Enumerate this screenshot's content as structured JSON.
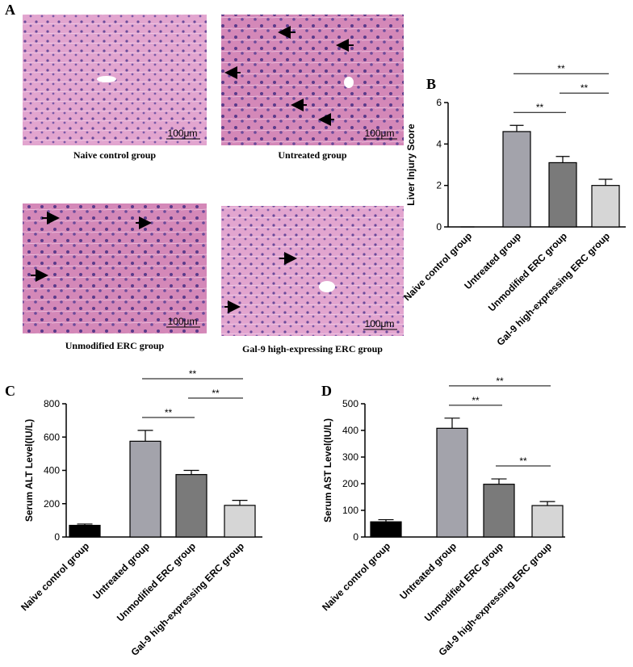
{
  "panel_a": {
    "label": "A",
    "images": [
      {
        "caption": "Naive control group",
        "scale_bar": "100μm"
      },
      {
        "caption": "Untreated group",
        "scale_bar": "100μm"
      },
      {
        "caption": "Unmodified ERC group",
        "scale_bar": "100μm"
      },
      {
        "caption": "Gal-9 high-expressing ERC group",
        "scale_bar": "100μm"
      }
    ]
  },
  "chart_data": [
    {
      "type": "bar",
      "panel_label": "B",
      "y_label": "Liver Injury Score",
      "categories": [
        "Naive control group",
        "Untreated group",
        "Unmodified ERC group",
        "Gal-9 high-expressing ERC group"
      ],
      "values": [
        0,
        4.6,
        3.1,
        2.0
      ],
      "errors": [
        0,
        0.3,
        0.3,
        0.3
      ],
      "colors": [
        "#000000",
        "#a3a3ab",
        "#7a7a7a",
        "#d6d6d6"
      ],
      "ylim": [
        0,
        6
      ],
      "yticks": [
        0,
        2,
        4,
        6
      ],
      "significance": [
        {
          "label": "**",
          "between": [
            "Untreated group",
            "Unmodified ERC group"
          ]
        },
        {
          "label": "**",
          "between": [
            "Unmodified ERC group",
            "Gal-9 high-expressing ERC group"
          ]
        },
        {
          "label": "**",
          "between": [
            "Untreated group",
            "Gal-9 high-expressing ERC group"
          ]
        }
      ]
    },
    {
      "type": "bar",
      "panel_label": "C",
      "y_label": "Serum ALT Level(IU/L)",
      "categories": [
        "Naive control group",
        "Untreated group",
        "Unmodified ERC group",
        "Gal-9 high-expressing ERC group"
      ],
      "values": [
        70,
        575,
        375,
        190
      ],
      "errors": [
        8,
        65,
        25,
        30
      ],
      "colors": [
        "#000000",
        "#a3a3ab",
        "#7a7a7a",
        "#d6d6d6"
      ],
      "ylim": [
        0,
        800
      ],
      "yticks": [
        0,
        200,
        400,
        600,
        800
      ],
      "significance": [
        {
          "label": "**",
          "between": [
            "Untreated group",
            "Unmodified ERC group"
          ]
        },
        {
          "label": "**",
          "between": [
            "Unmodified ERC group",
            "Gal-9 high-expressing ERC group"
          ]
        },
        {
          "label": "**",
          "between": [
            "Untreated group",
            "Gal-9 high-expressing ERC group"
          ]
        }
      ]
    },
    {
      "type": "bar",
      "panel_label": "D",
      "y_label": "Serum AST Level(IU/L)",
      "categories": [
        "Naive control group",
        "Untreated group",
        "Unmodified ERC group",
        "Gal-9 high-expressing ERC group"
      ],
      "values": [
        57,
        408,
        198,
        118
      ],
      "errors": [
        8,
        38,
        20,
        15
      ],
      "colors": [
        "#000000",
        "#a3a3ab",
        "#7a7a7a",
        "#d6d6d6"
      ],
      "ylim": [
        0,
        500
      ],
      "yticks": [
        0,
        100,
        200,
        300,
        400,
        500
      ],
      "significance": [
        {
          "label": "**",
          "between": [
            "Unmodified ERC group",
            "Gal-9 high-expressing ERC group"
          ]
        },
        {
          "label": "**",
          "between": [
            "Untreated group",
            "Unmodified ERC group"
          ]
        },
        {
          "label": "**",
          "between": [
            "Untreated group",
            "Gal-9 high-expressing ERC group"
          ]
        }
      ]
    }
  ]
}
